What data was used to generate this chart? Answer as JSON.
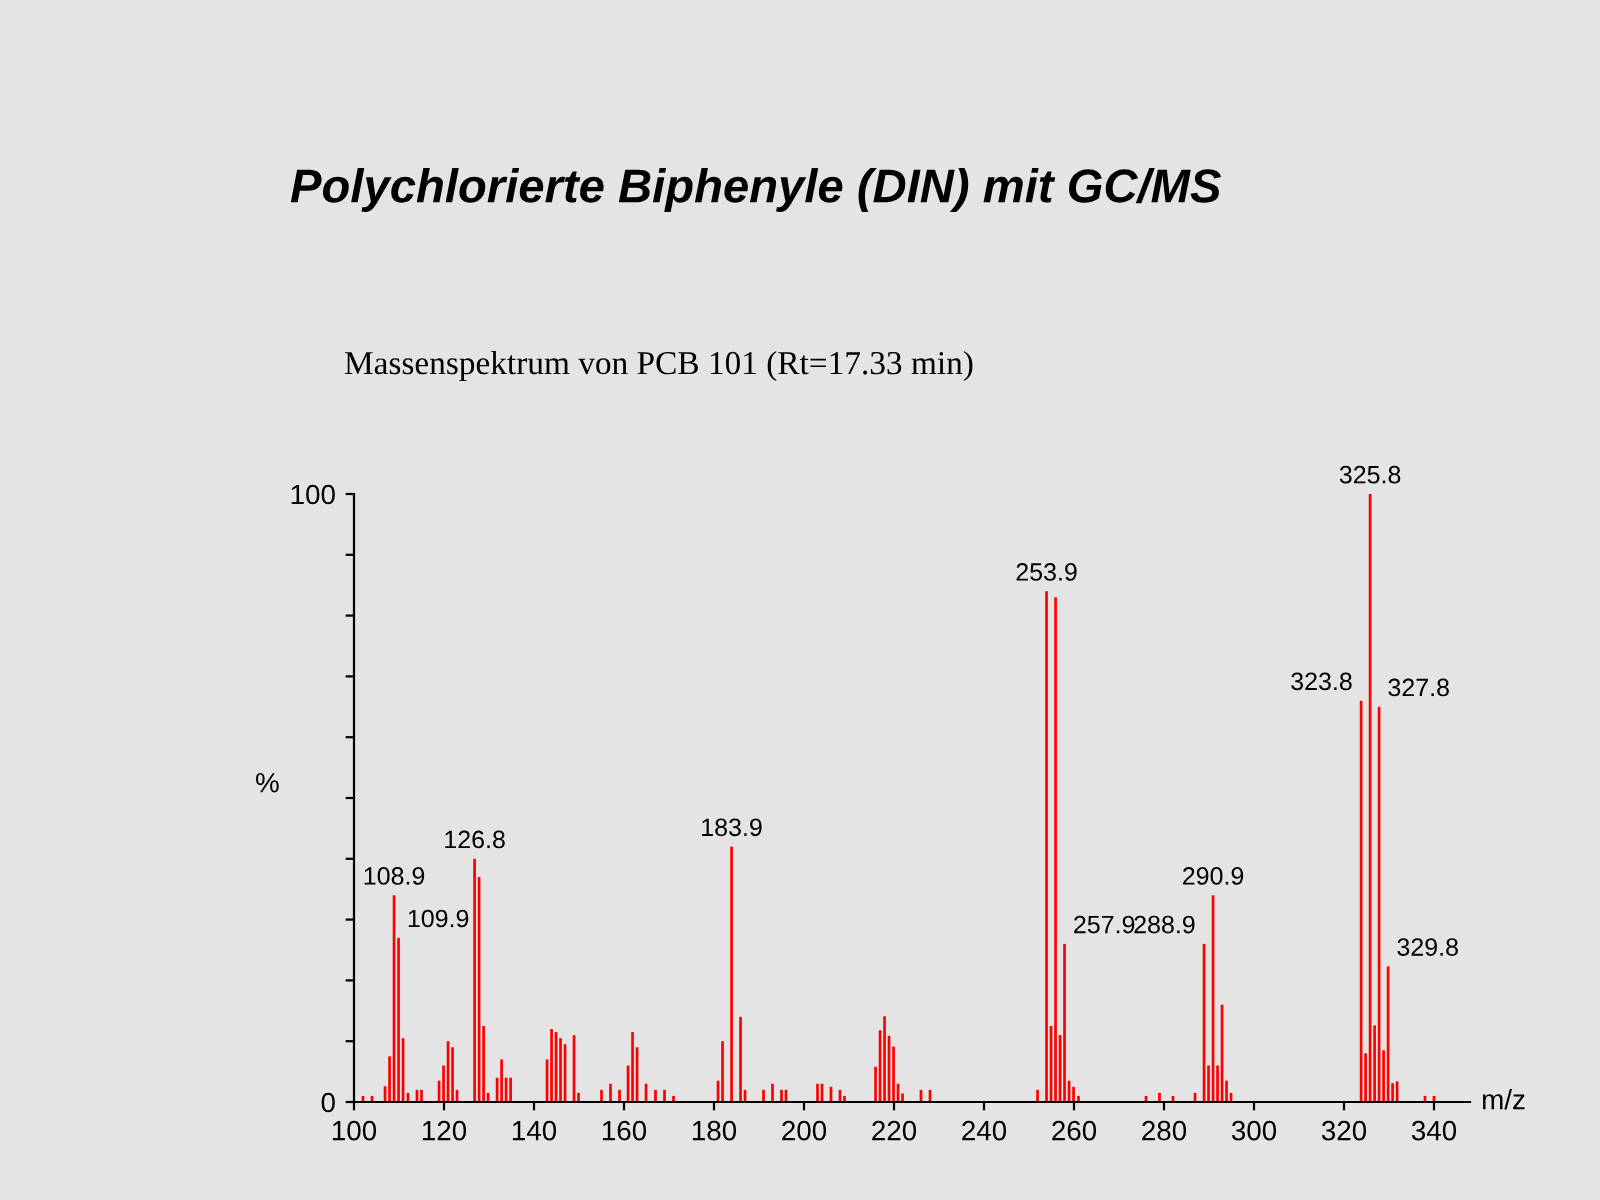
{
  "chart_data": {
    "type": "bar",
    "title": "Polychlorierte Biphenyle (DIN) mit GC/MS",
    "subtitle": "Massenspektrum von PCB 101 (Rt=17.33 min)",
    "xlabel": "m/z",
    "ylabel": "%",
    "color": "#ff0000",
    "x": [
      102,
      104,
      106.9,
      107.9,
      108.9,
      109.9,
      110.9,
      112,
      114,
      115,
      118.9,
      119.9,
      120.9,
      121.9,
      122.9,
      126.8,
      127.8,
      128.8,
      129.8,
      131.8,
      132.8,
      133.8,
      134.8,
      142.9,
      143.9,
      144.9,
      145.9,
      146.9,
      148.9,
      149.9,
      155,
      157,
      159,
      160.9,
      161.9,
      162.9,
      164.9,
      167,
      169,
      171,
      180.9,
      181.9,
      183.9,
      185.9,
      186.9,
      191,
      193,
      195,
      196,
      203,
      204,
      206,
      208,
      209,
      215.9,
      216.9,
      217.9,
      218.9,
      219.9,
      220.9,
      221.9,
      226,
      228,
      251.9,
      253.9,
      254.9,
      255.9,
      256.9,
      257.9,
      258.9,
      259.9,
      261,
      276,
      279,
      282,
      286.9,
      288.9,
      289.9,
      290.9,
      291.9,
      292.9,
      293.9,
      294.9,
      323.8,
      324.8,
      325.8,
      326.8,
      327.8,
      328.8,
      329.8,
      330.8,
      331.8,
      338,
      340
    ],
    "values": [
      1,
      1,
      2.6,
      7.5,
      34,
      27,
      10.5,
      1.5,
      2,
      2,
      3.5,
      6,
      10,
      9,
      2,
      40,
      37,
      12.5,
      1.5,
      4,
      7,
      4,
      4,
      7,
      12,
      11.5,
      10.5,
      9.5,
      11,
      1.5,
      2,
      3,
      2,
      6,
      11.5,
      9,
      3,
      2,
      2,
      1,
      3.5,
      10,
      42,
      14,
      2,
      2,
      3,
      2,
      2,
      3,
      3,
      2.5,
      2,
      1,
      5.8,
      11.8,
      14.1,
      10.9,
      9.1,
      3,
      1.4,
      2,
      2,
      2,
      84,
      12.5,
      83,
      11,
      26,
      3.5,
      2.5,
      1,
      1,
      1.5,
      1,
      1.5,
      26,
      6,
      34,
      6,
      16,
      3.5,
      1.5,
      66,
      8,
      100,
      12.6,
      65,
      8.5,
      22.3,
      3.1,
      3.4,
      1,
      1
    ],
    "xlim": [
      100,
      348
    ],
    "xticks": [
      100,
      120,
      140,
      160,
      180,
      200,
      220,
      240,
      260,
      280,
      300,
      320,
      340
    ],
    "ylim": [
      0,
      100
    ],
    "yticks": [
      0,
      {
        "value": 10,
        "label": null
      },
      {
        "value": 20,
        "label": null
      },
      {
        "value": 30,
        "label": null
      },
      {
        "value": 40,
        "label": null
      },
      {
        "value": 50,
        "label": null
      },
      {
        "value": 60,
        "label": null
      },
      {
        "value": 70,
        "label": null
      },
      {
        "value": 80,
        "label": null
      },
      {
        "value": 90,
        "label": null
      },
      100
    ],
    "annotations": [
      {
        "text": "108.9",
        "x": 108.9,
        "y": 34
      },
      {
        "text": "109.9",
        "x": 109.9,
        "y": 27
      },
      {
        "text": "126.8",
        "x": 126.8,
        "y": 40
      },
      {
        "text": "183.9",
        "x": 183.9,
        "y": 42
      },
      {
        "text": "253.9",
        "x": 253.9,
        "y": 84
      },
      {
        "text": "257.9",
        "x": 257.9,
        "y": 26
      },
      {
        "text": "288.9",
        "x": 288.9,
        "y": 26
      },
      {
        "text": "290.9",
        "x": 290.9,
        "y": 34
      },
      {
        "text": "323.8",
        "x": 323.8,
        "y": 66
      },
      {
        "text": "325.8",
        "x": 325.8,
        "y": 100
      },
      {
        "text": "327.8",
        "x": 327.8,
        "y": 65
      },
      {
        "text": "329.8",
        "x": 329.8,
        "y": 22.3
      }
    ],
    "grid": false
  }
}
